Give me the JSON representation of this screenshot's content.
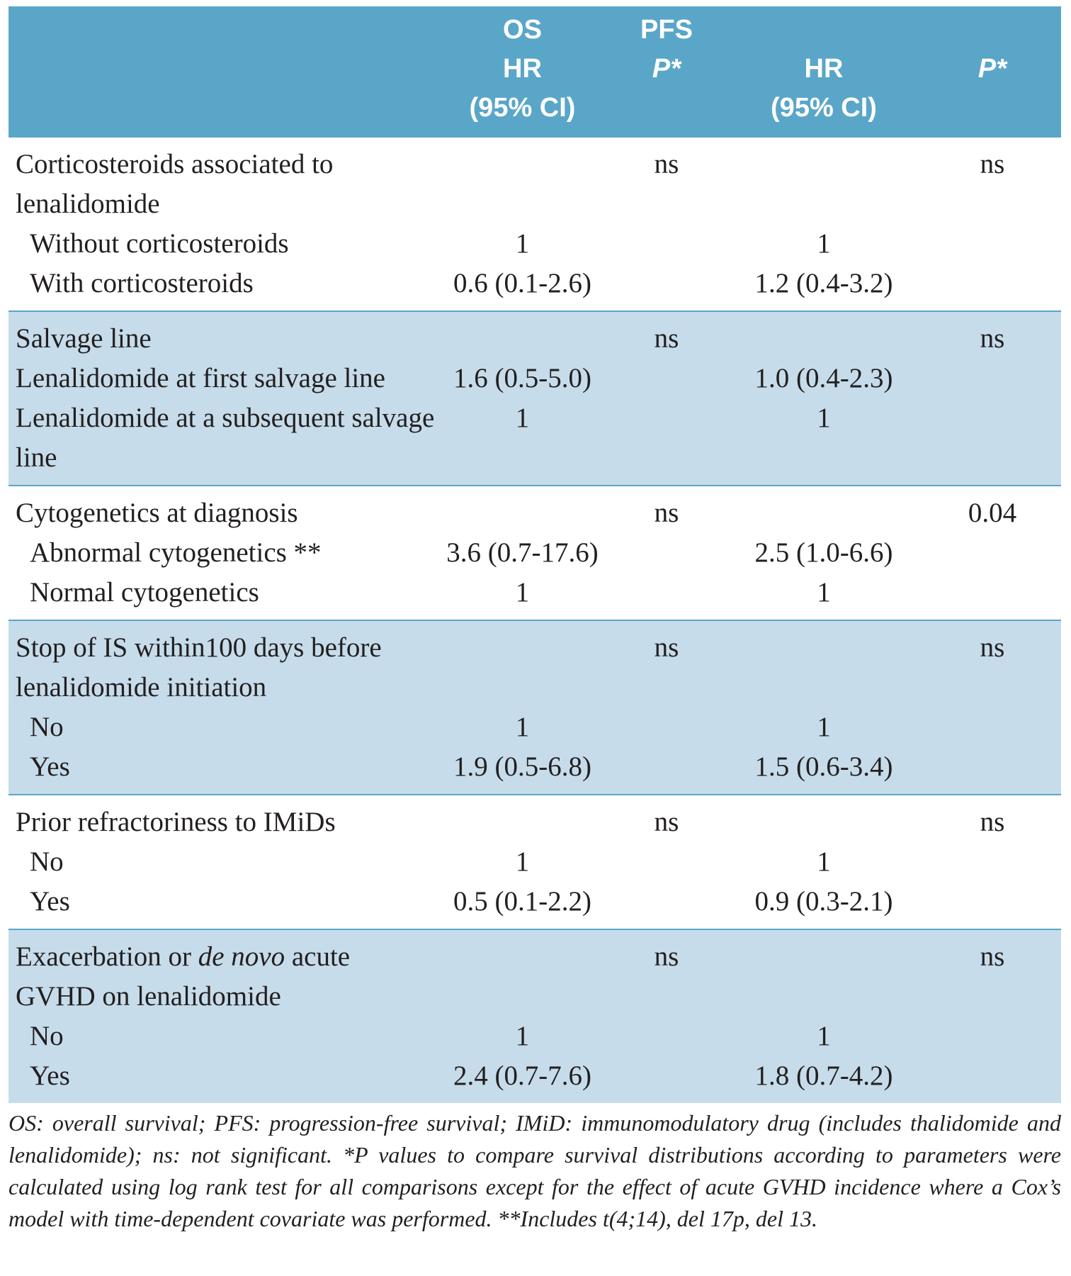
{
  "header": {
    "os": "OS",
    "pfs": "PFS",
    "os_hr": "HR",
    "os_ci": "(95% CI)",
    "os_p": "P*",
    "pfs_hr": "HR",
    "pfs_ci": "(95% CI)",
    "pfs_p": "P*"
  },
  "groups": [
    {
      "label": [
        "Corticosteroids associated to lenalidomide"
      ],
      "os_p": "ns",
      "pfs_p": "ns",
      "rows": [
        {
          "label": "Without corticosteroids",
          "os": "1",
          "pfs": "1"
        },
        {
          "label": "With corticosteroids",
          "os": "0.6 (0.1-2.6)",
          "pfs": "1.2 (0.4-3.2)"
        }
      ]
    },
    {
      "label": [
        "Salvage line"
      ],
      "os_p": "ns",
      "pfs_p": "ns",
      "rows": [
        {
          "label": "Lenalidomide at first salvage line",
          "os": "1.6 (0.5-5.0)",
          "pfs": "1.0 (0.4-2.3)"
        },
        {
          "label": "Lenalidomide at a subsequent salvage line",
          "os": "1",
          "pfs": "1"
        }
      ]
    },
    {
      "label": [
        "Cytogenetics at diagnosis"
      ],
      "os_p": "ns",
      "pfs_p": "0.04",
      "rows": [
        {
          "label": "Abnormal cytogenetics **",
          "os": "3.6 (0.7-17.6)",
          "pfs": "2.5 (1.0-6.6)"
        },
        {
          "label": "Normal cytogenetics",
          "os": "1",
          "pfs": "1"
        }
      ]
    },
    {
      "label": [
        "Stop of IS within100 days before lenalidomide initiation"
      ],
      "os_p": "ns",
      "pfs_p": "ns",
      "rows": [
        {
          "label": "No",
          "os": "1",
          "pfs": "1"
        },
        {
          "label": "Yes",
          "os": "1.9 (0.5-6.8)",
          "pfs": "1.5 (0.6-3.4)"
        }
      ]
    },
    {
      "label": [
        "Prior refractoriness to IMiDs"
      ],
      "os_p": "ns",
      "pfs_p": "ns",
      "rows": [
        {
          "label": "No",
          "os": "1",
          "pfs": "1"
        },
        {
          "label": "Yes",
          "os": "0.5 (0.1-2.2)",
          "pfs": "0.9 (0.3-2.1)"
        }
      ]
    },
    {
      "label": [
        "Exacerbation or ",
        "de novo",
        " acute GVHD on lenalidomide"
      ],
      "os_p": "ns",
      "pfs_p": "ns",
      "rows": [
        {
          "label": "No",
          "os": "1",
          "pfs": "1"
        },
        {
          "label": "Yes",
          "os": "2.4 (0.7-7.6)",
          "pfs": "1.8 (0.7-4.2)"
        }
      ]
    }
  ],
  "footnote": "OS: overall survival; PFS: progression-free survival; IMiD: immunomodulatory drug (includes thalidomide and lenalidomide); ns: not significant. *P values to compare survival distributions according to parameters were calculated using log rank test for all comparisons except for the effect of acute GVHD incidence where a Cox’s model with time-dependent covariate was performed. **Includes t(4;14), del 17p, del 13."
}
